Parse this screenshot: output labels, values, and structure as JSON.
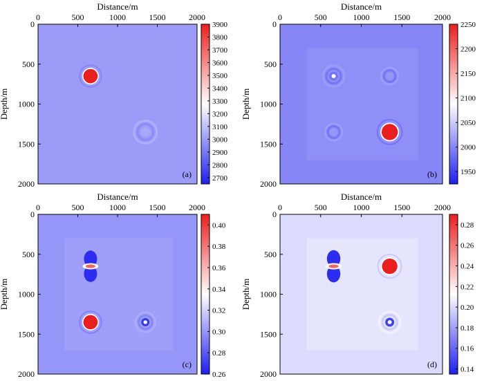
{
  "chart_data": [
    {
      "type": "heatmap",
      "panel_label": "(a)",
      "xlabel": "Distance/m",
      "ylabel": "Depth/m",
      "xlim": [
        0,
        2000
      ],
      "ylim": [
        0,
        2000
      ],
      "x_ticks": [
        "0",
        "500",
        "1000",
        "1500",
        "2000"
      ],
      "y_ticks": [
        "0",
        "500",
        "1000",
        "1500",
        "2000"
      ],
      "colorbar": {
        "min": 2650,
        "max": 3900,
        "ticks": [
          "2700",
          "2800",
          "2900",
          "3000",
          "3100",
          "3200",
          "3300",
          "3400",
          "3500",
          "3600",
          "3700",
          "3800",
          "3900"
        ],
        "background_value": 3000
      },
      "anomalies": [
        {
          "x": 660,
          "z": 650,
          "r": 95,
          "value": 3900,
          "type": "blob"
        },
        {
          "x": 1350,
          "z": 1350,
          "r": 110,
          "value": 3040,
          "type": "ring"
        }
      ]
    },
    {
      "type": "heatmap",
      "panel_label": "(b)",
      "xlabel": "Distance/m",
      "ylabel": "Depth/m",
      "xlim": [
        0,
        2000
      ],
      "ylim": [
        0,
        2000
      ],
      "x_ticks": [
        "0",
        "500",
        "1000",
        "1500",
        "2000"
      ],
      "y_ticks": [
        "0",
        "500",
        "1000",
        "1500",
        "2000"
      ],
      "colorbar": {
        "min": 1925,
        "max": 2250,
        "ticks": [
          "1950",
          "2000",
          "2050",
          "2100",
          "2150",
          "2200",
          "2250"
        ],
        "background_value": 2000
      },
      "anomalies": [
        {
          "x": 1350,
          "z": 1350,
          "r": 105,
          "value": 2250,
          "type": "blob"
        },
        {
          "x": 660,
          "z": 650,
          "r": 100,
          "value": 1985,
          "type": "ring"
        },
        {
          "x": 1350,
          "z": 650,
          "r": 80,
          "value": 2010,
          "type": "ring"
        },
        {
          "x": 660,
          "z": 1350,
          "r": 80,
          "value": 2010,
          "type": "ring"
        }
      ]
    },
    {
      "type": "heatmap",
      "panel_label": "(c)",
      "xlabel": "Distance/m",
      "ylabel": "Depth/m",
      "xlim": [
        0,
        2000
      ],
      "ylim": [
        0,
        2000
      ],
      "x_ticks": [
        "0",
        "500",
        "1000",
        "1500",
        "2000"
      ],
      "y_ticks": [
        "0",
        "500",
        "1000",
        "1500",
        "2000"
      ],
      "colorbar": {
        "min": 0.26,
        "max": 0.41,
        "ticks": [
          "0.26",
          "0.28",
          "0.30",
          "0.32",
          "0.34",
          "0.36",
          "0.38",
          "0.40"
        ],
        "background_value": 0.3
      },
      "anomalies": [
        {
          "x": 660,
          "z": 1350,
          "r": 95,
          "value": 0.41,
          "type": "blob"
        },
        {
          "x": 660,
          "z": 650,
          "r": 110,
          "value": 0.265,
          "type": "lobes"
        },
        {
          "x": 1350,
          "z": 1350,
          "r": 95,
          "value": 0.265,
          "type": "ring"
        }
      ]
    },
    {
      "type": "heatmap",
      "panel_label": "(d)",
      "xlabel": "Distance/m",
      "ylabel": "Depth/m",
      "xlim": [
        0,
        2000
      ],
      "ylim": [
        0,
        2000
      ],
      "x_ticks": [
        "0",
        "500",
        "1000",
        "1500",
        "2000"
      ],
      "y_ticks": [
        "0",
        "500",
        "1000",
        "1500",
        "2000"
      ],
      "colorbar": {
        "min": 0.135,
        "max": 0.29,
        "ticks": [
          "0.14",
          "0.16",
          "0.18",
          "0.20",
          "0.22",
          "0.24",
          "0.26",
          "0.28"
        ],
        "background_value": 0.2
      },
      "anomalies": [
        {
          "x": 1350,
          "z": 650,
          "r": 100,
          "value": 0.29,
          "type": "blob"
        },
        {
          "x": 660,
          "z": 650,
          "r": 110,
          "value": 0.14,
          "type": "lobes"
        },
        {
          "x": 1350,
          "z": 1350,
          "r": 100,
          "value": 0.14,
          "type": "ring"
        }
      ]
    }
  ]
}
